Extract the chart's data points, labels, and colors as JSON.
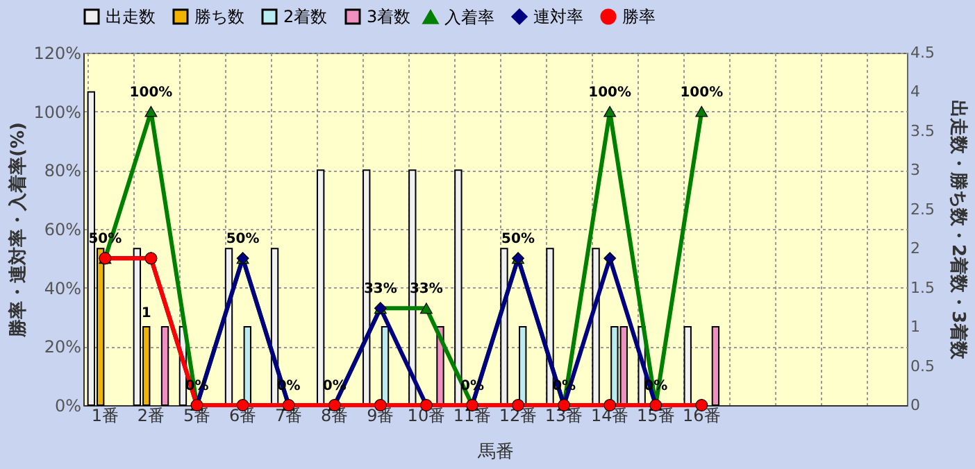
{
  "chart_data": {
    "type": "bar",
    "xlabel": "馬番",
    "ylabel": "勝率・連対率・入着率(%)",
    "y2label": "出走数・勝ち数・2着数・3着数",
    "categories": [
      "1番",
      "2番",
      "5番",
      "6番",
      "7番",
      "8番",
      "9番",
      "10番",
      "11番",
      "12番",
      "13番",
      "14番",
      "15番",
      "16番",
      null,
      null,
      null,
      null
    ],
    "series": [
      {
        "name": "出走数",
        "type": "bar",
        "axis": "y2",
        "color": "#f0f0f0",
        "values": [
          4,
          2,
          1,
          2,
          2,
          3,
          3,
          3,
          3,
          2,
          2,
          2,
          1,
          1,
          null,
          null,
          null,
          null
        ]
      },
      {
        "name": "勝ち数",
        "type": "bar",
        "axis": "y2",
        "color": "#f0b400",
        "values": [
          2,
          1,
          0,
          0,
          0,
          0,
          0,
          0,
          0,
          0,
          0,
          0,
          0,
          0,
          null,
          null,
          null,
          null
        ],
        "value_labels": [
          null,
          "1",
          null,
          null,
          null,
          null,
          null,
          null,
          null,
          null,
          null,
          null,
          null,
          null,
          null,
          null,
          null,
          null
        ]
      },
      {
        "name": "2着数",
        "type": "bar",
        "axis": "y2",
        "color": "#b8ecf0",
        "values": [
          0,
          0,
          0,
          1,
          0,
          0,
          1,
          0,
          0,
          1,
          0,
          1,
          0,
          0,
          null,
          null,
          null,
          null
        ]
      },
      {
        "name": "3着数",
        "type": "bar",
        "axis": "y2",
        "color": "#f090c0",
        "values": [
          0,
          1,
          0,
          0,
          0,
          0,
          0,
          1,
          0,
          0,
          0,
          1,
          0,
          1,
          null,
          null,
          null,
          null
        ]
      },
      {
        "name": "入着率",
        "type": "line",
        "color": "#008000",
        "marker": "triangle",
        "values": [
          50,
          100,
          0,
          50,
          0,
          0,
          33,
          33,
          0,
          50,
          0,
          100,
          0,
          100,
          null,
          null,
          null,
          null
        ],
        "value_labels": [
          "50%",
          "100%",
          "0%",
          "50%",
          "0%",
          "0%",
          "33%",
          "33%",
          "0%",
          "50%",
          "0%",
          "100%",
          "0%",
          "100%",
          null,
          null,
          null,
          null
        ]
      },
      {
        "name": "連対率",
        "type": "line",
        "color": "#000080",
        "marker": "diamond",
        "values": [
          50,
          50,
          0,
          50,
          0,
          0,
          33,
          0,
          0,
          50,
          0,
          50,
          0,
          0,
          null,
          null,
          null,
          null
        ]
      },
      {
        "name": "勝率",
        "type": "line",
        "color": "#ff0000",
        "marker": "circle",
        "values": [
          50,
          50,
          0,
          0,
          0,
          0,
          0,
          0,
          0,
          0,
          0,
          0,
          0,
          0,
          null,
          null,
          null,
          null
        ]
      }
    ],
    "ylim": [
      0,
      120
    ],
    "yticks": [
      {
        "value": 0,
        "label": "0%"
      },
      {
        "value": 20,
        "label": "20%"
      },
      {
        "value": 40,
        "label": "40%"
      },
      {
        "value": 60,
        "label": "60%"
      },
      {
        "value": 80,
        "label": "80%"
      },
      {
        "value": 100,
        "label": "100%"
      },
      {
        "value": 120,
        "label": "120%"
      }
    ],
    "y2lim": [
      0,
      4.5
    ],
    "y2ticks": [
      0,
      0.5,
      1,
      1.5,
      2,
      2.5,
      3,
      3.5,
      4,
      4.5
    ],
    "grid": true,
    "legend": "top"
  }
}
